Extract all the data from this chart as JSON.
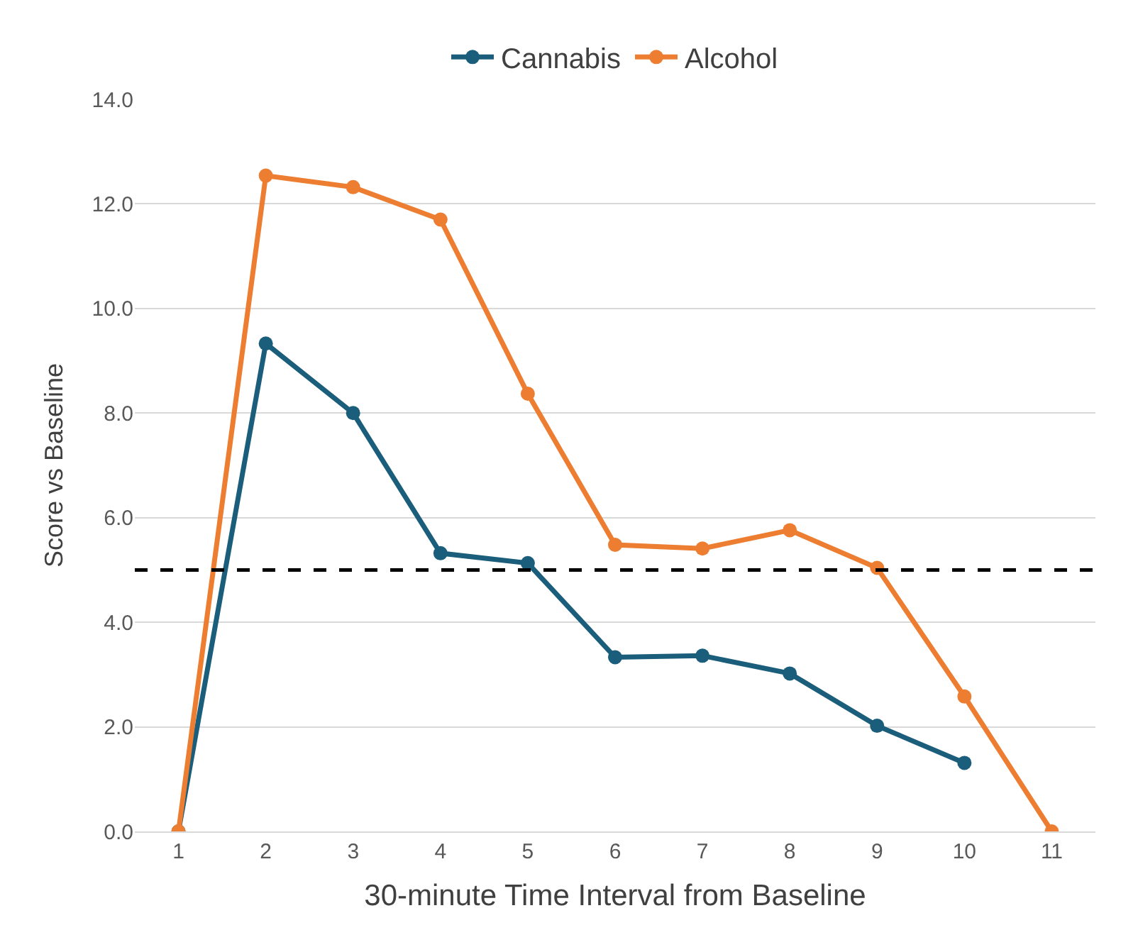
{
  "chart_data": {
    "type": "line",
    "xlabel": "30-minute Time Interval from Baseline",
    "ylabel": "Score vs Baseline",
    "categories": [
      "1",
      "2",
      "3",
      "4",
      "5",
      "6",
      "7",
      "8",
      "9",
      "10",
      "11"
    ],
    "series": [
      {
        "name": "Cannabis",
        "color": "#1b5e7b",
        "values": [
          0,
          9.33,
          8.0,
          5.32,
          5.13,
          3.33,
          3.36,
          3.02,
          2.02,
          1.31,
          null
        ]
      },
      {
        "name": "Alcohol",
        "color": "#ed7d31",
        "values": [
          0,
          12.54,
          12.32,
          11.7,
          8.37,
          5.48,
          5.41,
          5.76,
          5.04,
          2.58,
          0
        ]
      }
    ],
    "ylim": [
      0,
      14
    ],
    "yticks": [
      {
        "value": 0,
        "label": "0.0"
      },
      {
        "value": 2,
        "label": "2.0"
      },
      {
        "value": 4,
        "label": "4.0"
      },
      {
        "value": 6,
        "label": "6.0"
      },
      {
        "value": 8,
        "label": "8.0"
      },
      {
        "value": 10,
        "label": "10.0"
      },
      {
        "value": 12,
        "label": "12.0"
      },
      {
        "value": 14,
        "label": "14.0"
      }
    ],
    "ref_lines": [
      {
        "axis": "y",
        "value": 5,
        "color": "#000000",
        "line_style": "dashed"
      }
    ],
    "grid": "y",
    "legend": "top",
    "marker": "circle",
    "line_style": "solid"
  }
}
